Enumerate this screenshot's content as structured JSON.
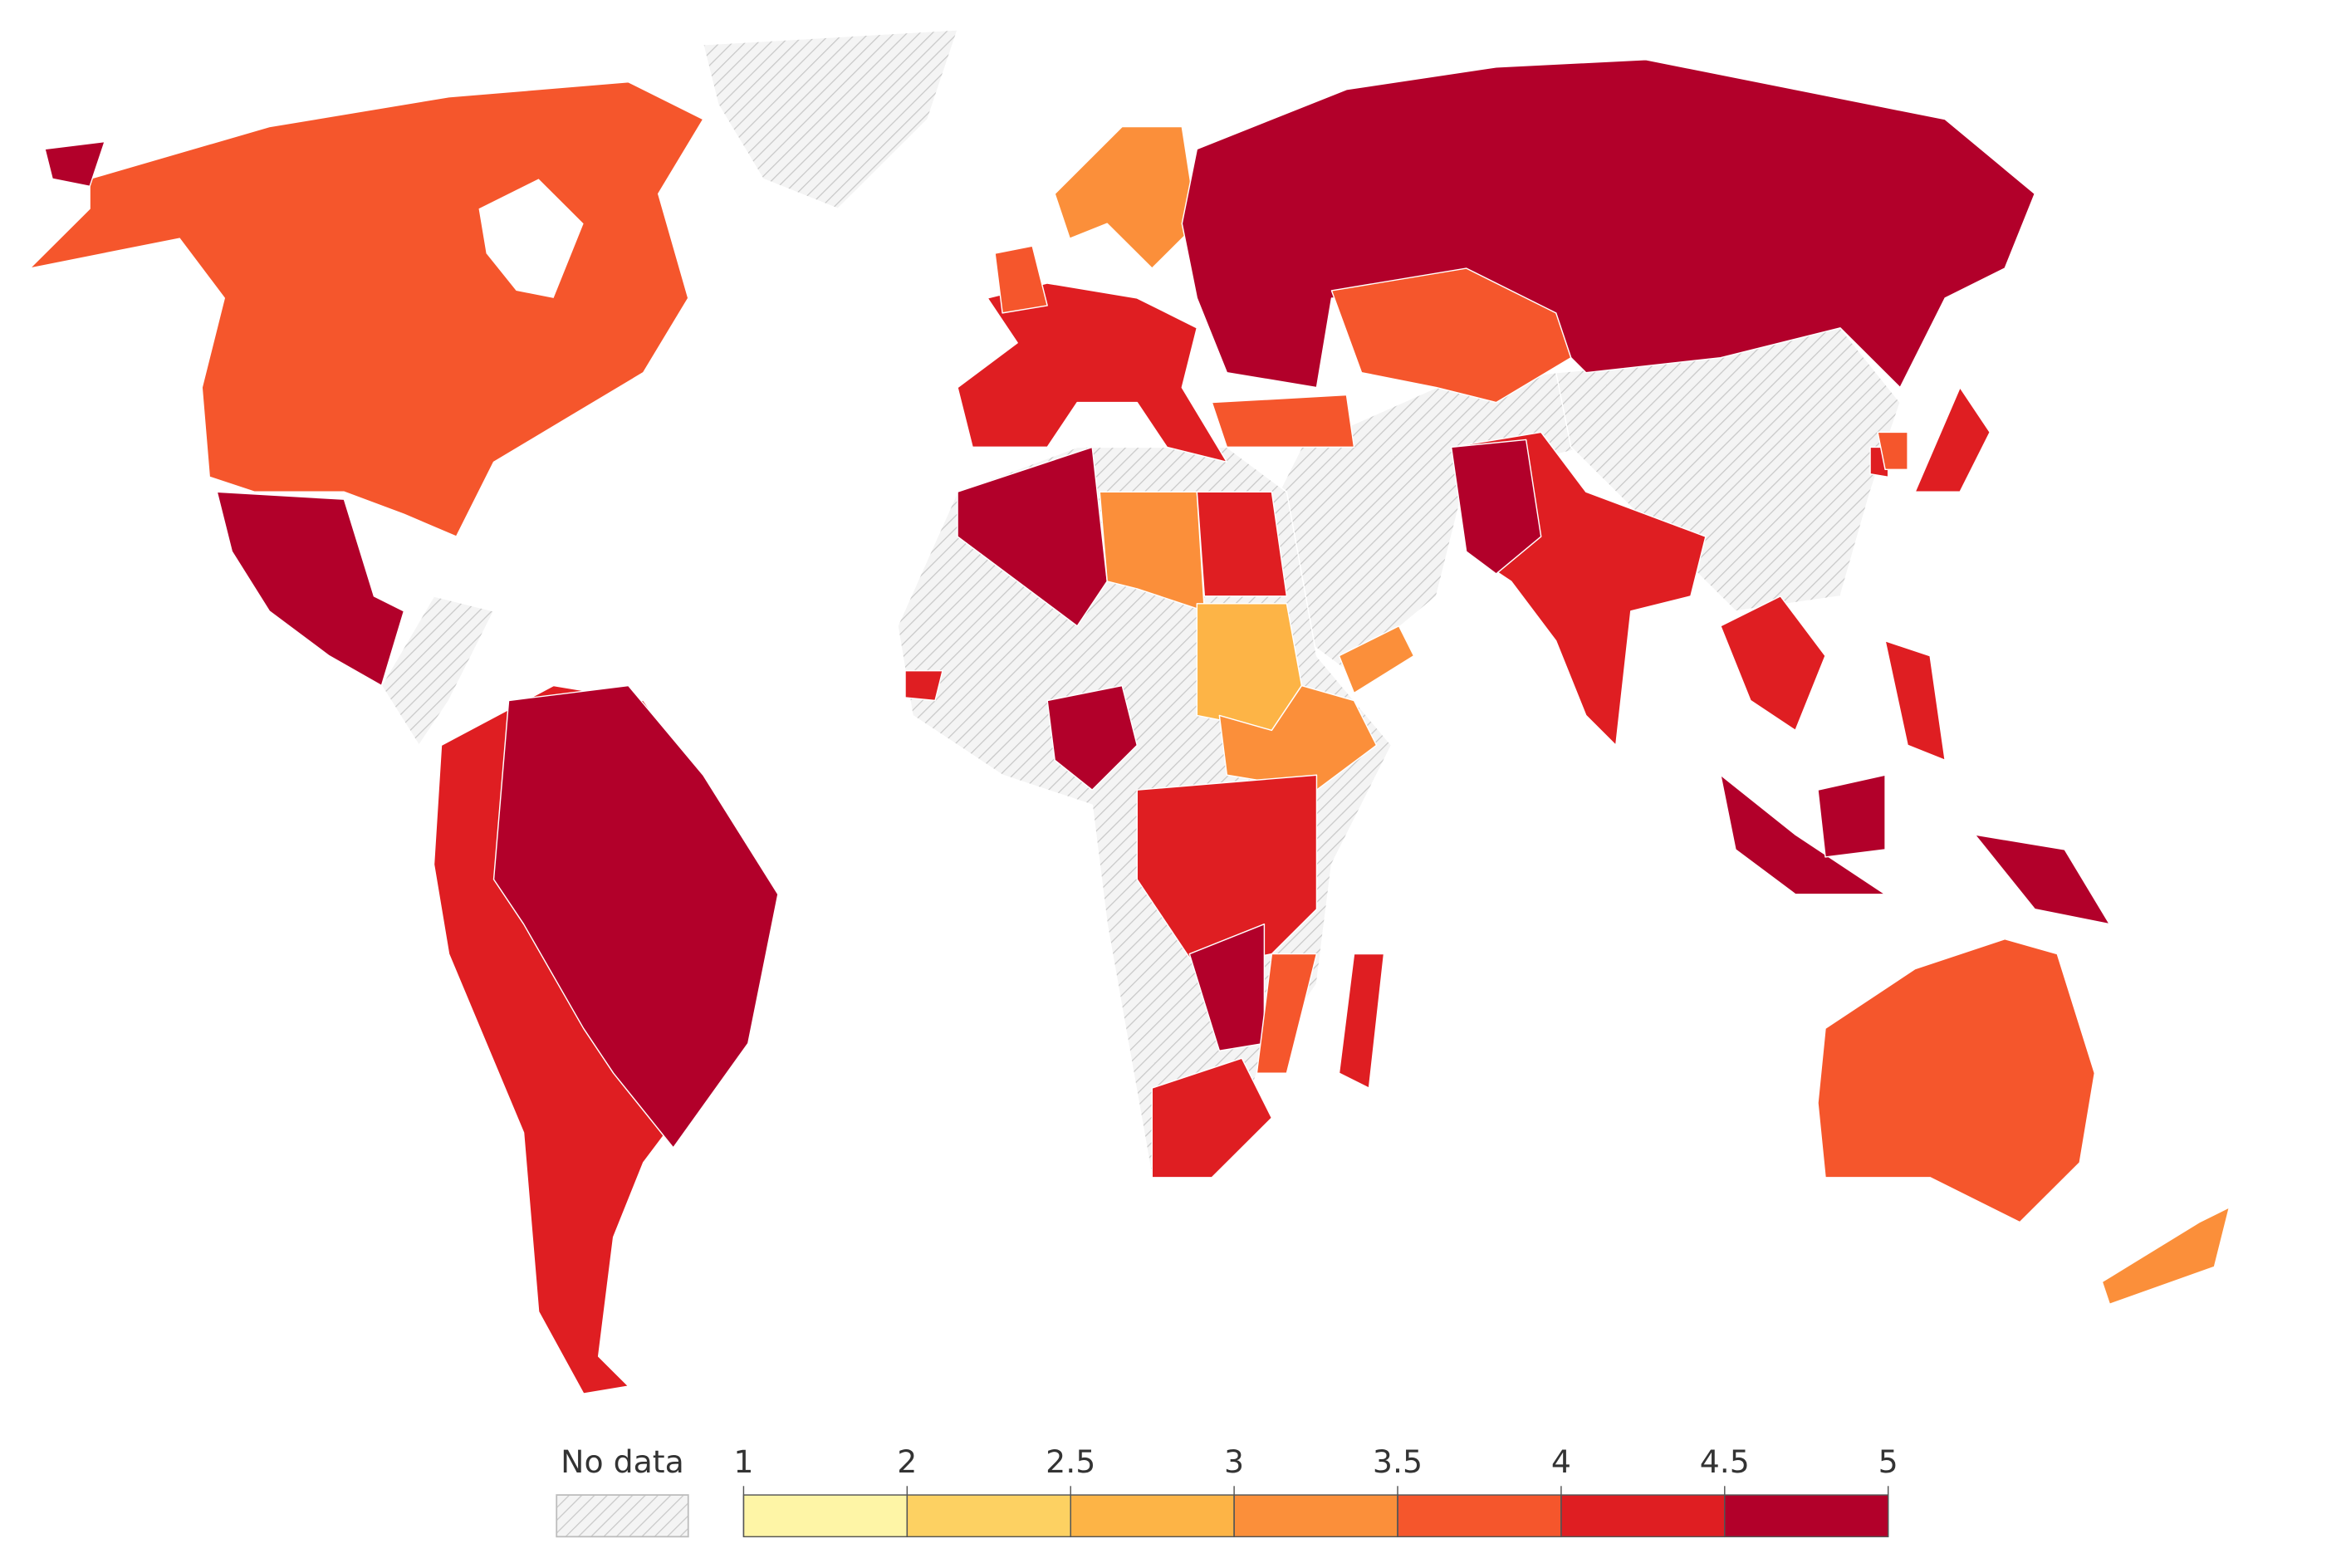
{
  "map": {
    "regions": [
      3.75,
      4.75,
      4.75,
      4.25,
      4.75,
      4.25,
      3.75,
      3.25,
      4.75,
      3.75,
      3.75,
      4.25,
      4.75,
      3.25,
      4.25,
      4.25,
      4.75,
      4.75,
      4.75,
      4.25,
      4.25,
      3.75,
      3.75,
      3.25,
      4.75,
      3.25,
      4.25,
      2.75,
      3.25,
      4.75,
      4.25,
      4.75,
      3.75,
      4.25,
      4.25,
      4.25
    ],
    "legend": {
      "no_data_label": "No data",
      "bins": [
        1,
        2,
        2.5,
        3,
        3.5,
        4,
        4.5,
        5
      ],
      "colors": [
        "#fef5a6",
        "#fdd162",
        "#fdb446",
        "#fb8f3a",
        "#f5562c",
        "#df1e22",
        "#b2002a"
      ]
    }
  }
}
